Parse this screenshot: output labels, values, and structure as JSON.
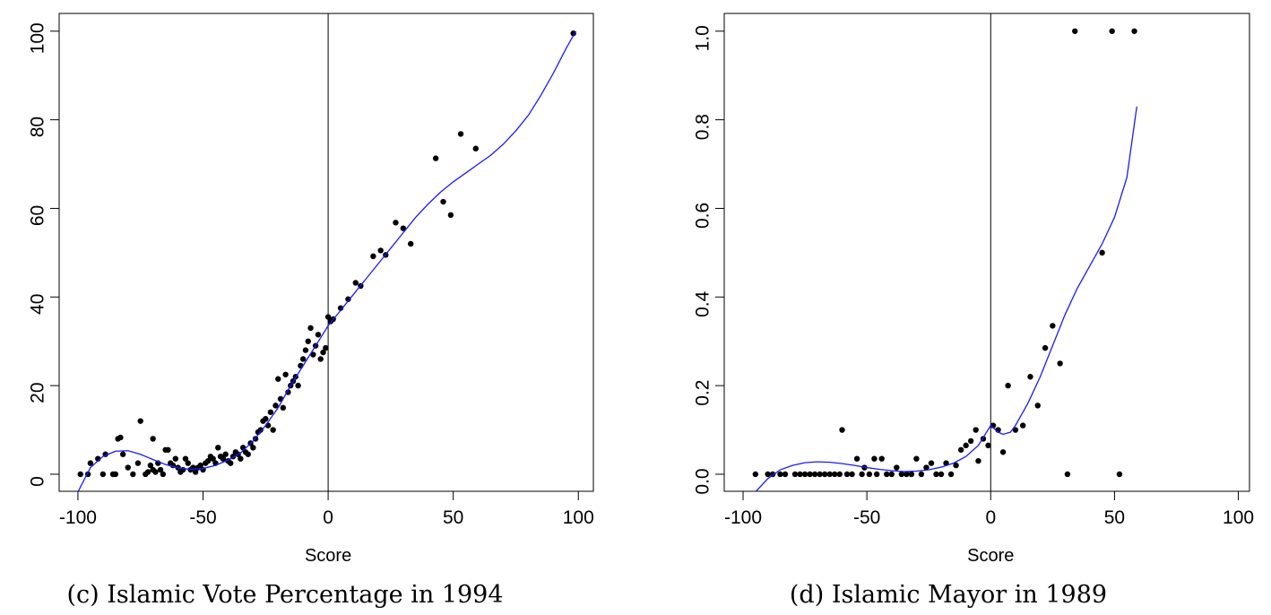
{
  "chart_data": [
    {
      "type": "scatter",
      "caption": "(c) Islamic Vote Percentage in 1994",
      "x_label": "Score",
      "xlim": [
        -107.5,
        106
      ],
      "ylim": [
        -3.85,
        104
      ],
      "xticks": [
        -100,
        -50,
        0,
        50,
        100
      ],
      "yticks": [
        0,
        20,
        40,
        60,
        80,
        100
      ],
      "vline": 0,
      "series": [
        {
          "type": "scatter",
          "color": "#000000",
          "x": [
            -99,
            -96,
            -95,
            -92,
            -90,
            -89,
            -86,
            -85,
            -84,
            -83,
            -82,
            -80,
            -78,
            -76,
            -75,
            -73,
            -72,
            -71,
            -70,
            -70,
            -69,
            -68,
            -67,
            -66,
            -65,
            -64,
            -63,
            -62,
            -61,
            -60,
            -59,
            -58,
            -57,
            -56,
            -55,
            -54,
            -53,
            -52,
            -51,
            -50,
            -49,
            -48,
            -47,
            -46,
            -45,
            -44,
            -43,
            -42,
            -41,
            -40,
            -39,
            -38,
            -37,
            -36,
            -35,
            -34,
            -33,
            -32,
            -31,
            -30,
            -29,
            -28,
            -27,
            -26,
            -25,
            -24,
            -23,
            -22,
            -21,
            -20,
            -19,
            -18,
            -17,
            -16,
            -15,
            -14,
            -13,
            -12,
            -11,
            -10,
            -9,
            -8,
            -7,
            -6,
            -5,
            -4,
            -3,
            -2,
            -1,
            0,
            1,
            2,
            5,
            8,
            11,
            13,
            18,
            21,
            23,
            27,
            30,
            33,
            43,
            46,
            49,
            53,
            59,
            98
          ],
          "values": [
            0,
            0,
            2.5,
            3.5,
            0,
            4.5,
            0,
            0,
            8,
            8.3,
            4.5,
            1.5,
            0,
            2.5,
            12,
            0,
            0.5,
            2,
            8,
            1,
            0.5,
            2.5,
            1,
            0,
            5.5,
            5.5,
            2.5,
            2,
            3.5,
            1.5,
            0.5,
            1,
            3.5,
            2.5,
            1,
            1.5,
            0.5,
            1.5,
            2,
            1,
            2.5,
            3,
            4,
            3.5,
            2.5,
            6,
            4,
            3.5,
            4.5,
            3,
            2.5,
            4,
            5,
            4.5,
            3.5,
            6,
            5,
            4.5,
            7,
            6,
            8,
            9.5,
            10,
            12,
            12.5,
            11,
            14,
            10,
            15.5,
            21.5,
            17,
            15,
            22.5,
            18.5,
            20,
            21,
            22,
            20,
            24.5,
            26,
            28,
            30,
            33,
            27,
            29,
            31.5,
            26,
            27.5,
            28.5,
            35.5,
            34.5,
            35,
            37.5,
            39.5,
            43.2,
            42.5,
            49.2,
            50.5,
            49.5,
            56.8,
            55.5,
            52,
            71.3,
            61.5,
            58.5,
            76.8,
            73.5,
            99.5
          ]
        },
        {
          "type": "line",
          "color": "#1a1aff",
          "x": [
            -100,
            -95,
            -90,
            -85,
            -80,
            -75,
            -70,
            -65,
            -60,
            -55,
            -50,
            -45,
            -40,
            -35,
            -30,
            -25,
            -20,
            -15,
            -10,
            -5,
            0,
            5,
            10,
            15,
            20,
            25,
            30,
            35,
            40,
            45,
            50,
            55,
            60,
            65,
            70,
            75,
            80,
            85,
            90,
            95,
            99
          ],
          "values": [
            -4,
            1.5,
            4,
            5.2,
            5.3,
            4.5,
            3.3,
            2.2,
            1.4,
            1.1,
            1.3,
            2,
            3.2,
            4.8,
            7.5,
            11,
            15,
            20,
            24.5,
            29,
            33.5,
            37,
            40.5,
            44,
            47.5,
            51,
            54.5,
            58,
            61,
            63.7,
            66,
            68,
            70,
            72,
            74.5,
            77.5,
            81,
            85.5,
            90.5,
            96,
            100
          ]
        }
      ]
    },
    {
      "type": "scatter",
      "caption": "(d) Islamic Mayor in 1989",
      "x_label": "Score",
      "xlim": [
        -107.6,
        104.5
      ],
      "ylim": [
        -0.0385,
        1.04
      ],
      "xticks": [
        -100,
        -50,
        0,
        50,
        100
      ],
      "yticks": [
        {
          "value": 0,
          "label": "0.0"
        },
        {
          "value": 0.2,
          "label": "0.2"
        },
        {
          "value": 0.4,
          "label": "0.4"
        },
        {
          "value": 0.6,
          "label": "0.6"
        },
        {
          "value": 0.8,
          "label": "0.8"
        },
        {
          "value": 1,
          "label": "1.0"
        }
      ],
      "vline": 0,
      "series": [
        {
          "type": "scatter",
          "color": "#000000",
          "x": [
            -95,
            -90,
            -88,
            -85,
            -83,
            -79,
            -77,
            -75,
            -73,
            -71,
            -69,
            -67,
            -65,
            -63,
            -61,
            -60,
            -58,
            -56,
            -54,
            -52,
            -51,
            -49,
            -47,
            -46,
            -44,
            -42,
            -40,
            -38,
            -36,
            -34,
            -32,
            -30,
            -28,
            -26,
            -24,
            -22,
            -20,
            -18,
            -16,
            -14,
            -12,
            -10,
            -8,
            -6,
            -5,
            -3,
            -1,
            1,
            3,
            5,
            7,
            10,
            13,
            16,
            19,
            22,
            25,
            28,
            31,
            34,
            45,
            49,
            52,
            58
          ],
          "values": [
            0,
            0,
            0,
            0,
            0,
            0,
            0,
            0,
            0,
            0,
            0,
            0,
            0,
            0,
            0,
            0.1,
            0,
            0,
            0.035,
            0,
            0.015,
            0,
            0.035,
            0,
            0.035,
            0,
            0,
            0.015,
            0,
            0,
            0,
            0.035,
            0,
            0.015,
            0.025,
            0,
            0,
            0.025,
            0,
            0.02,
            0.055,
            0.065,
            0.075,
            0.1,
            0.03,
            0.08,
            0.065,
            0.11,
            0.1,
            0.05,
            0.2,
            0.1,
            0.11,
            0.22,
            0.155,
            0.285,
            0.335,
            0.25,
            0,
            1,
            0.5,
            1,
            0,
            1
          ]
        },
        {
          "type": "line",
          "color": "#1a1aff",
          "x": [
            -95,
            -90,
            -85,
            -80,
            -75,
            -70,
            -65,
            -60,
            -55,
            -50,
            -45,
            -40,
            -35,
            -30,
            -25,
            -20,
            -15,
            -10,
            -5,
            0,
            3,
            5,
            8,
            10,
            15,
            20,
            25,
            30,
            35,
            40,
            45,
            50,
            55,
            59
          ],
          "values": [
            -0.04,
            -0.01,
            0.01,
            0.02,
            0.026,
            0.028,
            0.027,
            0.024,
            0.02,
            0.015,
            0.011,
            0.008,
            0.006,
            0.007,
            0.01,
            0.016,
            0.025,
            0.04,
            0.065,
            0.11,
            0.095,
            0.09,
            0.095,
            0.11,
            0.16,
            0.22,
            0.29,
            0.36,
            0.42,
            0.47,
            0.52,
            0.58,
            0.67,
            0.83
          ]
        }
      ]
    }
  ]
}
